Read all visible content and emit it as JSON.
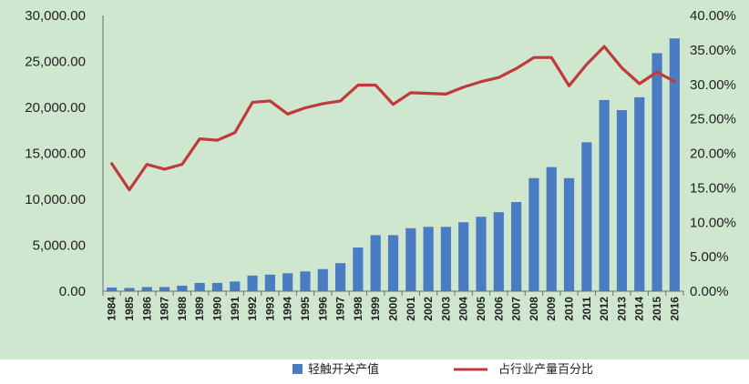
{
  "chart_data": {
    "type": "bar+line",
    "categories": [
      "1984",
      "1985",
      "1986",
      "1987",
      "1988",
      "1989",
      "1990",
      "1991",
      "1992",
      "1993",
      "1994",
      "1995",
      "1996",
      "1997",
      "1998",
      "1999",
      "2000",
      "2001",
      "2002",
      "2003",
      "2004",
      "2005",
      "2006",
      "2007",
      "2008",
      "2009",
      "2010",
      "2011",
      "2012",
      "2013",
      "2014",
      "2015",
      "2016"
    ],
    "series": [
      {
        "name": "轻触开关产值",
        "type": "bar",
        "axis": "left",
        "color": "#4a7cc4",
        "values": [
          400,
          350,
          450,
          450,
          600,
          900,
          900,
          1050,
          1700,
          1800,
          1950,
          2150,
          2400,
          3050,
          4750,
          6100,
          6100,
          6850,
          7000,
          7000,
          7500,
          8100,
          8600,
          9700,
          12300,
          13500,
          12300,
          16200,
          20800,
          19700,
          21100,
          25900,
          27500
        ]
      },
      {
        "name": "占行业产量百分比",
        "type": "line",
        "axis": "right",
        "color": "#c0393b",
        "values": [
          18.5,
          14.7,
          18.4,
          17.7,
          18.4,
          22.1,
          21.9,
          23.0,
          27.4,
          27.6,
          25.7,
          26.6,
          27.2,
          27.6,
          29.9,
          29.9,
          27.1,
          28.8,
          28.7,
          28.6,
          29.6,
          30.4,
          31.0,
          32.3,
          33.9,
          33.9,
          29.8,
          32.9,
          35.5,
          32.4,
          30.1,
          31.8,
          30.4
        ]
      }
    ],
    "y_left": {
      "min": 0,
      "max": 30000,
      "step": 5000,
      "tick_labels": [
        "0.00",
        "5,000.00",
        "10,000.00",
        "15,000.00",
        "20,000.00",
        "25,000.00",
        "30,000.00"
      ]
    },
    "y_right": {
      "min": 0,
      "max": 40,
      "step": 5,
      "tick_labels": [
        "0.00%",
        "5.00%",
        "10.00%",
        "15.00%",
        "20.00%",
        "25.00%",
        "30.00%",
        "35.00%",
        "40.00%"
      ]
    },
    "grid": false,
    "legend_position": "bottom",
    "colors": {
      "plot_background": "#cfe6cf",
      "axis_line": "#6f6f6f",
      "text": "#222222"
    }
  }
}
